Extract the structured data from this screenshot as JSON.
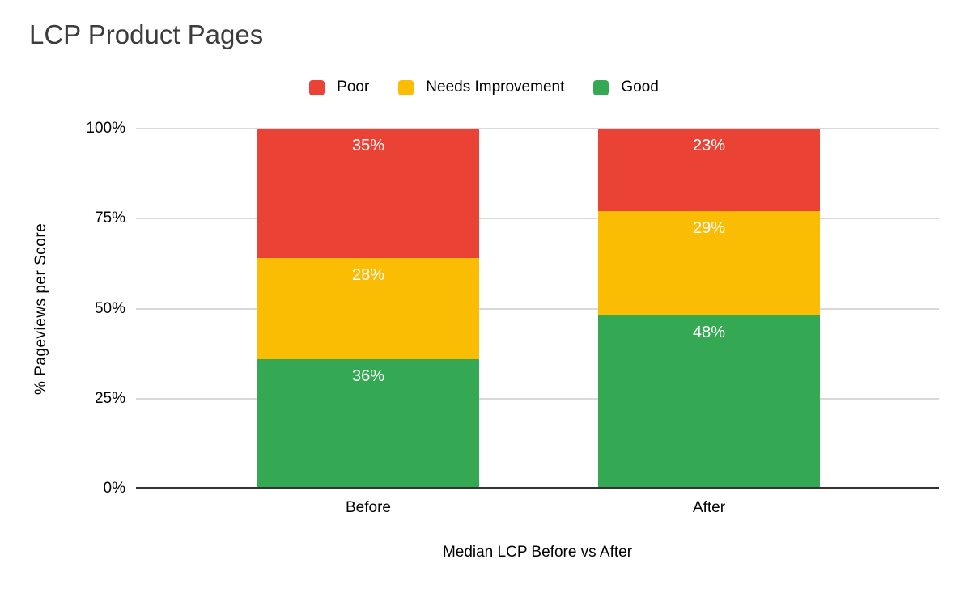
{
  "title": "LCP Product Pages",
  "legend": {
    "items": [
      {
        "label": "Poor",
        "color": "#EA4335"
      },
      {
        "label": "Needs Improvement",
        "color": "#FBBC04"
      },
      {
        "label": "Good",
        "color": "#34A853"
      }
    ]
  },
  "chart_data": {
    "type": "bar",
    "subtype": "stacked-100-percent",
    "title": "LCP Product Pages",
    "categories": [
      "Before",
      "After"
    ],
    "series": [
      {
        "name": "Good",
        "color": "#34A853",
        "values": [
          36,
          48
        ]
      },
      {
        "name": "Needs Improvement",
        "color": "#FBBC04",
        "values": [
          28,
          29
        ]
      },
      {
        "name": "Poor",
        "color": "#EA4335",
        "values": [
          35,
          23
        ]
      }
    ],
    "stack_order_bottom_to_top": [
      "Good",
      "Needs Improvement",
      "Poor"
    ],
    "value_label_suffix": "%",
    "xlabel": "Median LCP Before vs After",
    "ylabel": "% Pageviews per Score",
    "yticks": [
      "0%",
      "25%",
      "50%",
      "75%",
      "100%"
    ],
    "ylim": [
      0,
      100
    ],
    "grid": true,
    "legend_position": "top",
    "colors": {
      "gridline": "#d9d9d9",
      "axis_line": "#333333",
      "value_label_text": "#ffffff",
      "title_text": "#3c3c3c"
    }
  }
}
